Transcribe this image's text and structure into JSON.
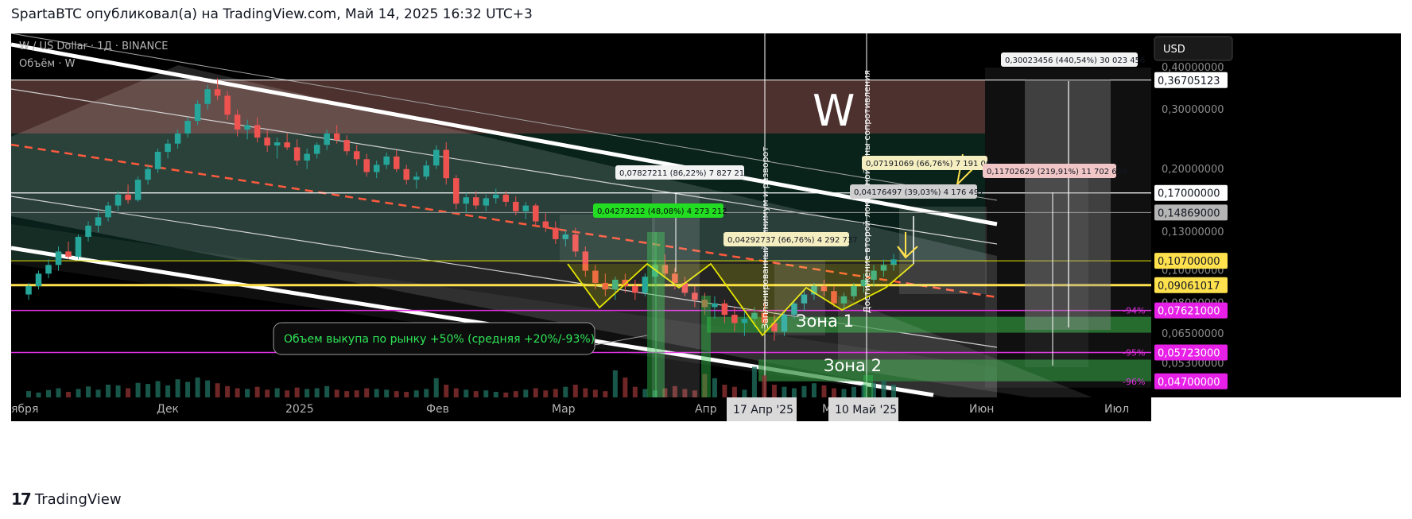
{
  "header": {
    "publisher_line": "SpartaBTC опубликовал(а) на TradingView.com, Май 14, 2025 16:32 UTC+3"
  },
  "footer": {
    "brand": "TradingView",
    "logo_icon": "tradingview-logo-icon"
  },
  "legend": {
    "symbol_line": "W / US Dollar · 1Д · BINANCE",
    "volume_line": "Объём · W"
  },
  "currency_button": "USD",
  "colors": {
    "background": "#000000",
    "candle_up": "#26a69a",
    "candle_down": "#ef5350",
    "trend_channel": "#ffffff",
    "midline_dashed": "#ff5a3d",
    "pattern_yellow": "#e6e600",
    "zone_green": "#2e8b3a",
    "top_zone_brown": "#5a3a36",
    "magenta_level": "#e030e0"
  },
  "chart_data": {
    "type": "candlestick",
    "x_axis": {
      "scale": "time",
      "tick_labels": [
        "ября",
        "Дек",
        "2025",
        "Фев",
        "Мар",
        "Апр",
        "Май",
        "Июн",
        "Июл"
      ],
      "highlighted_dates": [
        "17 Апр '25",
        "10 Май '25"
      ]
    },
    "y_axis": {
      "scale": "log",
      "tick_labels": [
        "0,40000000",
        "0,30000000",
        "0,20000000",
        "0,13000000",
        "0,10000000",
        "0,08000000",
        "0,06500000",
        "0,05300000"
      ],
      "range": [
        0.045,
        0.42
      ]
    },
    "price_labels": [
      {
        "value": "0,36705123",
        "style": "white"
      },
      {
        "value": "0,17000000",
        "style": "white"
      },
      {
        "value": "0,14869000",
        "style": "grey"
      },
      {
        "value": "0,10700000",
        "style": "yellow"
      },
      {
        "value": "0,09061017",
        "style": "yellow"
      },
      {
        "value": "0,07621000",
        "style": "magenta"
      },
      {
        "value": "0,05723000",
        "style": "magenta"
      },
      {
        "value": "0,04700000",
        "style": "magenta"
      }
    ],
    "level_percent_labels": [
      "-94%",
      "-95%",
      "-96%"
    ],
    "measure_labels": [
      {
        "text": "0,30023456 (440,54%) 30 023 456",
        "style": "white"
      },
      {
        "text": "0,07827211 (86,22%) 7 827 211",
        "style": "white"
      },
      {
        "text": "0,04273212 (48,08%) 4 273 212",
        "style": "green"
      },
      {
        "text": "0,04292737 (66,76%) 4 292 737",
        "style": "yellow"
      },
      {
        "text": "0,07191069 (66,76%) 7 191 069",
        "style": "yellow"
      },
      {
        "text": "0,04176497 (39,03%) 4 176 497",
        "style": "grey"
      },
      {
        "text": "0,11702629 (219,91%) 11 702 629",
        "style": "pink"
      }
    ],
    "annotations": {
      "ticker_big": "W",
      "zone1": "Зона 1",
      "zone2": "Зона 2",
      "callout": "Объем выкупа по рынку +50% (средняя +20%/-93%)",
      "vertical_text_1": "Запланированный минимум и разворот",
      "vertical_text_2": "Достижение второй локальной зоны сопротивления"
    },
    "series": [
      {
        "name": "W / US Dollar",
        "ohlc": [
          [
            0.085,
            0.092,
            0.082,
            0.09
          ],
          [
            0.09,
            0.1,
            0.088,
            0.098
          ],
          [
            0.098,
            0.108,
            0.095,
            0.104
          ],
          [
            0.104,
            0.118,
            0.1,
            0.114
          ],
          [
            0.114,
            0.122,
            0.108,
            0.11
          ],
          [
            0.11,
            0.128,
            0.108,
            0.126
          ],
          [
            0.126,
            0.14,
            0.122,
            0.136
          ],
          [
            0.136,
            0.15,
            0.13,
            0.144
          ],
          [
            0.144,
            0.16,
            0.14,
            0.156
          ],
          [
            0.156,
            0.172,
            0.15,
            0.168
          ],
          [
            0.168,
            0.18,
            0.158,
            0.162
          ],
          [
            0.162,
            0.19,
            0.16,
            0.186
          ],
          [
            0.186,
            0.205,
            0.18,
            0.2
          ],
          [
            0.2,
            0.23,
            0.195,
            0.225
          ],
          [
            0.225,
            0.245,
            0.215,
            0.238
          ],
          [
            0.238,
            0.262,
            0.23,
            0.255
          ],
          [
            0.255,
            0.285,
            0.248,
            0.278
          ],
          [
            0.278,
            0.32,
            0.27,
            0.312
          ],
          [
            0.312,
            0.355,
            0.3,
            0.345
          ],
          [
            0.345,
            0.372,
            0.32,
            0.33
          ],
          [
            0.33,
            0.34,
            0.28,
            0.29
          ],
          [
            0.29,
            0.3,
            0.25,
            0.262
          ],
          [
            0.262,
            0.28,
            0.245,
            0.27
          ],
          [
            0.27,
            0.285,
            0.24,
            0.248
          ],
          [
            0.248,
            0.262,
            0.225,
            0.235
          ],
          [
            0.235,
            0.248,
            0.215,
            0.24
          ],
          [
            0.24,
            0.255,
            0.228,
            0.232
          ],
          [
            0.232,
            0.245,
            0.205,
            0.212
          ],
          [
            0.212,
            0.23,
            0.2,
            0.222
          ],
          [
            0.222,
            0.24,
            0.215,
            0.236
          ],
          [
            0.236,
            0.262,
            0.228,
            0.255
          ],
          [
            0.255,
            0.27,
            0.238,
            0.244
          ],
          [
            0.244,
            0.252,
            0.22,
            0.226
          ],
          [
            0.226,
            0.236,
            0.205,
            0.214
          ],
          [
            0.214,
            0.222,
            0.19,
            0.196
          ],
          [
            0.196,
            0.212,
            0.188,
            0.206
          ],
          [
            0.206,
            0.224,
            0.2,
            0.218
          ],
          [
            0.218,
            0.228,
            0.196,
            0.2
          ],
          [
            0.2,
            0.206,
            0.18,
            0.186
          ],
          [
            0.186,
            0.196,
            0.175,
            0.19
          ],
          [
            0.19,
            0.212,
            0.186,
            0.205
          ],
          [
            0.205,
            0.235,
            0.2,
            0.228
          ],
          [
            0.228,
            0.24,
            0.18,
            0.188
          ],
          [
            0.188,
            0.192,
            0.152,
            0.158
          ],
          [
            0.158,
            0.17,
            0.148,
            0.165
          ],
          [
            0.165,
            0.172,
            0.152,
            0.156
          ],
          [
            0.156,
            0.168,
            0.15,
            0.164
          ],
          [
            0.164,
            0.175,
            0.158,
            0.168
          ],
          [
            0.168,
            0.172,
            0.155,
            0.16
          ],
          [
            0.16,
            0.166,
            0.146,
            0.15
          ],
          [
            0.15,
            0.16,
            0.142,
            0.156
          ],
          [
            0.156,
            0.158,
            0.136,
            0.14
          ],
          [
            0.14,
            0.148,
            0.13,
            0.134
          ],
          [
            0.134,
            0.14,
            0.12,
            0.124
          ],
          [
            0.124,
            0.132,
            0.118,
            0.128
          ],
          [
            0.128,
            0.134,
            0.11,
            0.114
          ],
          [
            0.114,
            0.118,
            0.096,
            0.1
          ],
          [
            0.1,
            0.104,
            0.088,
            0.092
          ],
          [
            0.092,
            0.098,
            0.084,
            0.088
          ],
          [
            0.088,
            0.096,
            0.082,
            0.094
          ],
          [
            0.094,
            0.098,
            0.086,
            0.09
          ],
          [
            0.09,
            0.094,
            0.082,
            0.086
          ],
          [
            0.086,
            0.098,
            0.084,
            0.096
          ],
          [
            0.096,
            0.108,
            0.092,
            0.104
          ],
          [
            0.104,
            0.112,
            0.096,
            0.098
          ],
          [
            0.098,
            0.102,
            0.088,
            0.092
          ],
          [
            0.092,
            0.096,
            0.084,
            0.086
          ],
          [
            0.086,
            0.09,
            0.078,
            0.082
          ],
          [
            0.082,
            0.086,
            0.074,
            0.078
          ],
          [
            0.078,
            0.084,
            0.072,
            0.08
          ],
          [
            0.08,
            0.082,
            0.07,
            0.074
          ],
          [
            0.074,
            0.078,
            0.066,
            0.07
          ],
          [
            0.07,
            0.076,
            0.064,
            0.072
          ],
          [
            0.072,
            0.078,
            0.068,
            0.075
          ],
          [
            0.075,
            0.08,
            0.068,
            0.07
          ],
          [
            0.07,
            0.074,
            0.062,
            0.066
          ],
          [
            0.066,
            0.076,
            0.064,
            0.074
          ],
          [
            0.074,
            0.082,
            0.072,
            0.08
          ],
          [
            0.08,
            0.088,
            0.076,
            0.085
          ],
          [
            0.085,
            0.092,
            0.082,
            0.09
          ],
          [
            0.09,
            0.094,
            0.084,
            0.087
          ],
          [
            0.087,
            0.09,
            0.078,
            0.08
          ],
          [
            0.08,
            0.086,
            0.076,
            0.084
          ],
          [
            0.084,
            0.092,
            0.082,
            0.09
          ],
          [
            0.09,
            0.098,
            0.086,
            0.094
          ],
          [
            0.094,
            0.104,
            0.09,
            0.1
          ],
          [
            0.1,
            0.108,
            0.096,
            0.104
          ],
          [
            0.104,
            0.112,
            0.1,
            0.108
          ]
        ]
      }
    ],
    "volume": [
      22,
      18,
      25,
      30,
      20,
      28,
      35,
      26,
      40,
      38,
      30,
      45,
      42,
      50,
      38,
      55,
      48,
      60,
      52,
      44,
      36,
      30,
      28,
      34,
      26,
      30,
      24,
      32,
      28,
      30,
      36,
      26,
      22,
      24,
      30,
      28,
      26,
      22,
      20,
      24,
      28,
      58,
      40,
      30,
      26,
      22,
      24,
      20,
      18,
      22,
      26,
      30,
      24,
      28,
      34,
      40,
      30,
      26,
      22,
      80,
      60,
      34,
      28,
      24,
      30,
      36,
      28,
      24,
      70,
      58,
      40,
      34,
      26,
      90,
      66,
      40,
      34,
      30,
      36,
      44,
      38,
      30,
      28,
      34,
      40,
      46,
      52,
      40
    ],
    "grid": false,
    "legend_position": "top-left"
  }
}
